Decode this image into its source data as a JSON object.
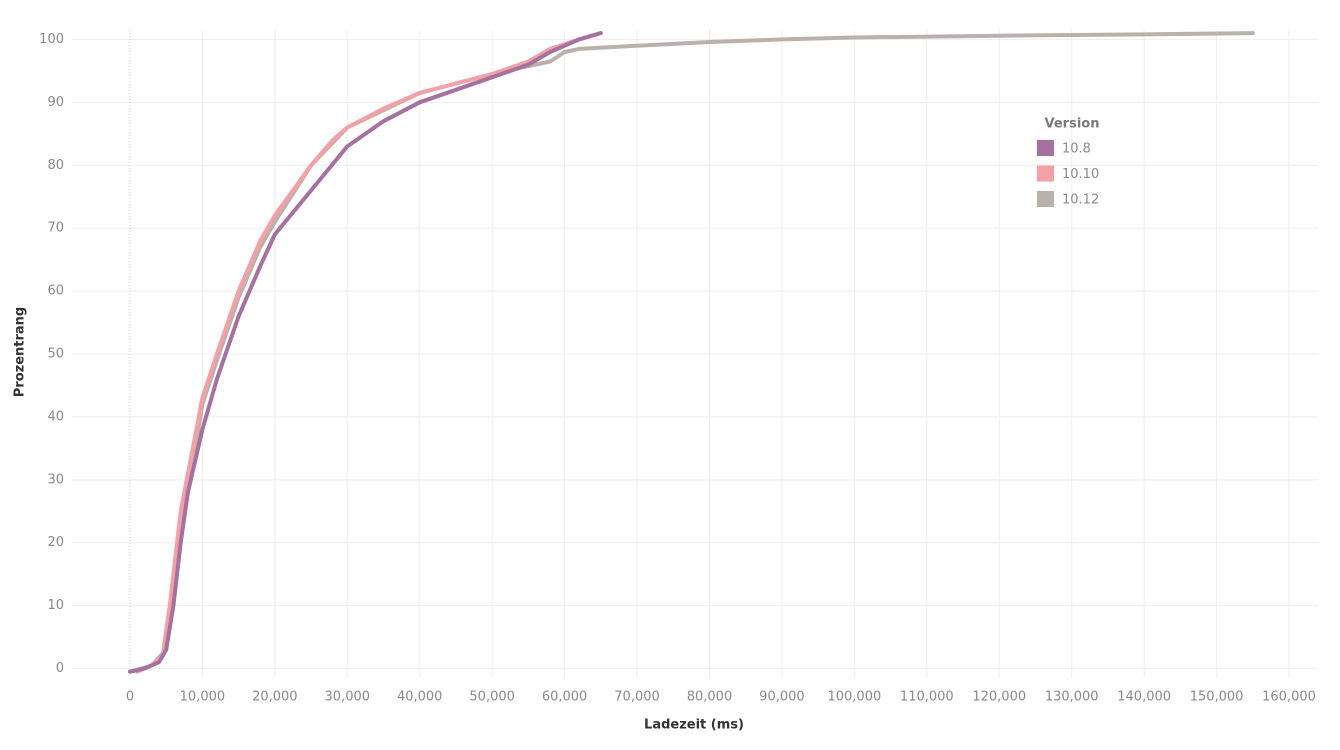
{
  "chart_data": {
    "type": "line",
    "x_label": "Ladezeit (ms)",
    "y_label": "Prozentrang",
    "legend_title": "Version",
    "legend_position": "upper right",
    "grid": true,
    "xlim": [
      -8000,
      164000
    ],
    "ylim": [
      -1.5,
      101.5
    ],
    "xticks": [
      {
        "value": 0,
        "label": "0"
      },
      {
        "value": 10000,
        "label": "10,000"
      },
      {
        "value": 20000,
        "label": "20,000"
      },
      {
        "value": 30000,
        "label": "30,000"
      },
      {
        "value": 40000,
        "label": "40,000"
      },
      {
        "value": 50000,
        "label": "50,000"
      },
      {
        "value": 60000,
        "label": "60,000"
      },
      {
        "value": 70000,
        "label": "70,000"
      },
      {
        "value": 80000,
        "label": "80,000"
      },
      {
        "value": 90000,
        "label": "90,000"
      },
      {
        "value": 100000,
        "label": "100,000"
      },
      {
        "value": 110000,
        "label": "110,000"
      },
      {
        "value": 120000,
        "label": "120,000"
      },
      {
        "value": 130000,
        "label": "130,000"
      },
      {
        "value": 140000,
        "label": "140,000"
      },
      {
        "value": 150000,
        "label": "150,000"
      },
      {
        "value": 160000,
        "label": "160,000"
      }
    ],
    "yticks": [
      0,
      10,
      20,
      30,
      40,
      50,
      60,
      70,
      80,
      90,
      100
    ],
    "series": [
      {
        "name": "10.12",
        "color": "#bab0ac",
        "x": [
          0,
          3000,
          5000,
          6000,
          7000,
          9000,
          10000,
          12000,
          15000,
          18000,
          20000,
          25000,
          30000,
          40000,
          50000,
          54000,
          58000,
          60000,
          62000,
          70000,
          80000,
          90000,
          100000,
          120000,
          140000,
          155000
        ],
        "values": [
          -0.5,
          0.5,
          3,
          12,
          22,
          35,
          42,
          49,
          59,
          67,
          71,
          80,
          86,
          91.5,
          94.5,
          95.5,
          96.5,
          98,
          98.5,
          99,
          99.6,
          100,
          100.3,
          100.6,
          100.8,
          101
        ]
      },
      {
        "name": "10.10",
        "color": "#f4a0a7",
        "x": [
          1000,
          3000,
          4500,
          5500,
          7000,
          9000,
          10000,
          12000,
          15000,
          18000,
          20000,
          25000,
          28000,
          30000,
          35000,
          40000,
          45000,
          50000,
          55000,
          58000,
          62000
        ],
        "values": [
          -0.5,
          0.5,
          2,
          10,
          25,
          37,
          43,
          50,
          60,
          68,
          72,
          80,
          84,
          86,
          89,
          91.5,
          93,
          94.5,
          96.5,
          98.5,
          100
        ]
      },
      {
        "name": "10.8",
        "color": "#a5729f",
        "x": [
          0,
          2000,
          4000,
          5000,
          6000,
          7000,
          8000,
          10000,
          12000,
          15000,
          18000,
          20000,
          25000,
          30000,
          35000,
          40000,
          45000,
          50000,
          55000,
          58000,
          62000,
          65000
        ],
        "values": [
          -0.5,
          0,
          1,
          3,
          10,
          20,
          28,
          38,
          46,
          56,
          64,
          69,
          76,
          83,
          87,
          90,
          92,
          94,
          96,
          98,
          100,
          101
        ]
      }
    ]
  }
}
